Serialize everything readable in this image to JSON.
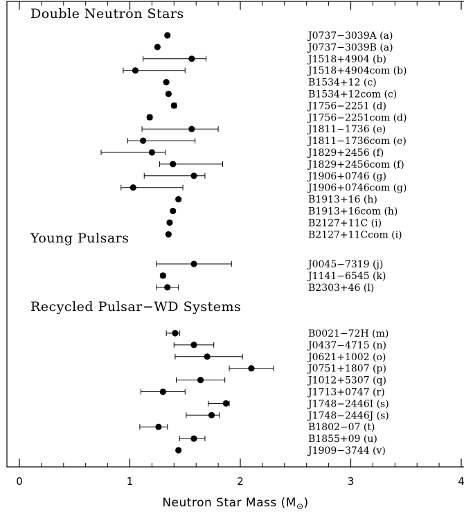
{
  "chart_data": {
    "type": "scatter",
    "title": "",
    "xlabel": "Neutron Star Mass (M",
    "xlabel_symbol": "⊙",
    "xlim": [
      0,
      4
    ],
    "x_ticks": [
      "0",
      "1",
      "2",
      "3",
      "4"
    ],
    "grid": false,
    "groups": [
      {
        "name": "Double Neutron Stars",
        "points": [
          {
            "label": "J0737−3039A (a)",
            "x": 1.34,
            "lo": null,
            "hi": null
          },
          {
            "label": "J0737−3039B (a)",
            "x": 1.25,
            "lo": null,
            "hi": null
          },
          {
            "label": "J1518+4904 (b)",
            "x": 1.56,
            "lo": 1.12,
            "hi": 1.69
          },
          {
            "label": "J1518+4904com (b)",
            "x": 1.05,
            "lo": 0.94,
            "hi": 1.5
          },
          {
            "label": "B1534+12 (c)",
            "x": 1.33,
            "lo": null,
            "hi": null
          },
          {
            "label": "B1534+12com (c)",
            "x": 1.35,
            "lo": null,
            "hi": null
          },
          {
            "label": "J1756−2251 (d)",
            "x": 1.4,
            "lo": 1.38,
            "hi": 1.42
          },
          {
            "label": "J1756−2251com (d)",
            "x": 1.18,
            "lo": 1.16,
            "hi": 1.2
          },
          {
            "label": "J1811−1736 (e)",
            "x": 1.56,
            "lo": 1.11,
            "hi": 1.8
          },
          {
            "label": "J1811−1736com (e)",
            "x": 1.12,
            "lo": 0.98,
            "hi": 1.59
          },
          {
            "label": "J1829+2456 (f)",
            "x": 1.2,
            "lo": 0.74,
            "hi": 1.32
          },
          {
            "label": "J1829+2456com (f)",
            "x": 1.39,
            "lo": 1.27,
            "hi": 1.84
          },
          {
            "label": "J1906+0746 (g)",
            "x": 1.58,
            "lo": 1.13,
            "hi": 1.68
          },
          {
            "label": "J1906+0746com (g)",
            "x": 1.03,
            "lo": 0.92,
            "hi": 1.48
          },
          {
            "label": "B1913+16 (h)",
            "x": 1.44,
            "lo": null,
            "hi": null
          },
          {
            "label": "B1913+16com (h)",
            "x": 1.39,
            "lo": null,
            "hi": null
          },
          {
            "label": "B2127+11C (i)",
            "x": 1.36,
            "lo": null,
            "hi": null
          },
          {
            "label": "B2127+11Ccom (i)",
            "x": 1.35,
            "lo": null,
            "hi": null
          }
        ]
      },
      {
        "name": "Young Pulsars",
        "points": [
          {
            "label": "J0045−7319 (j)",
            "x": 1.58,
            "lo": 1.24,
            "hi": 1.92
          },
          {
            "label": "J1141−6545 (k)",
            "x": 1.3,
            "lo": 1.28,
            "hi": 1.32
          },
          {
            "label": "B2303+46 (l)",
            "x": 1.34,
            "lo": 1.24,
            "hi": 1.44
          }
        ]
      },
      {
        "name": "Recycled Pulsar−WD Systems",
        "points": [
          {
            "label": "B0021−72H (m)",
            "x": 1.41,
            "lo": 1.33,
            "hi": 1.45
          },
          {
            "label": "J0437−4715 (n)",
            "x": 1.58,
            "lo": 1.4,
            "hi": 1.76
          },
          {
            "label": "J0621+1002 (o)",
            "x": 1.7,
            "lo": 1.41,
            "hi": 2.02
          },
          {
            "label": "J0751+1807 (p)",
            "x": 2.1,
            "lo": 1.9,
            "hi": 2.3
          },
          {
            "label": "J1012+5307 (q)",
            "x": 1.64,
            "lo": 1.42,
            "hi": 1.86
          },
          {
            "label": "J1713+0747 (r)",
            "x": 1.3,
            "lo": 1.1,
            "hi": 1.5
          },
          {
            "label": "J1748−2446I (s)",
            "x": 1.87,
            "lo": 1.71,
            "hi": 1.9
          },
          {
            "label": "J1748−2446J (s)",
            "x": 1.74,
            "lo": 1.51,
            "hi": 1.81
          },
          {
            "label": "B1802−07 (t)",
            "x": 1.26,
            "lo": 1.09,
            "hi": 1.34
          },
          {
            "label": "B1855+09 (u)",
            "x": 1.58,
            "lo": 1.45,
            "hi": 1.68
          },
          {
            "label": "J1909−3744 (v)",
            "x": 1.44,
            "lo": 1.43,
            "hi": 1.45
          }
        ]
      }
    ]
  }
}
